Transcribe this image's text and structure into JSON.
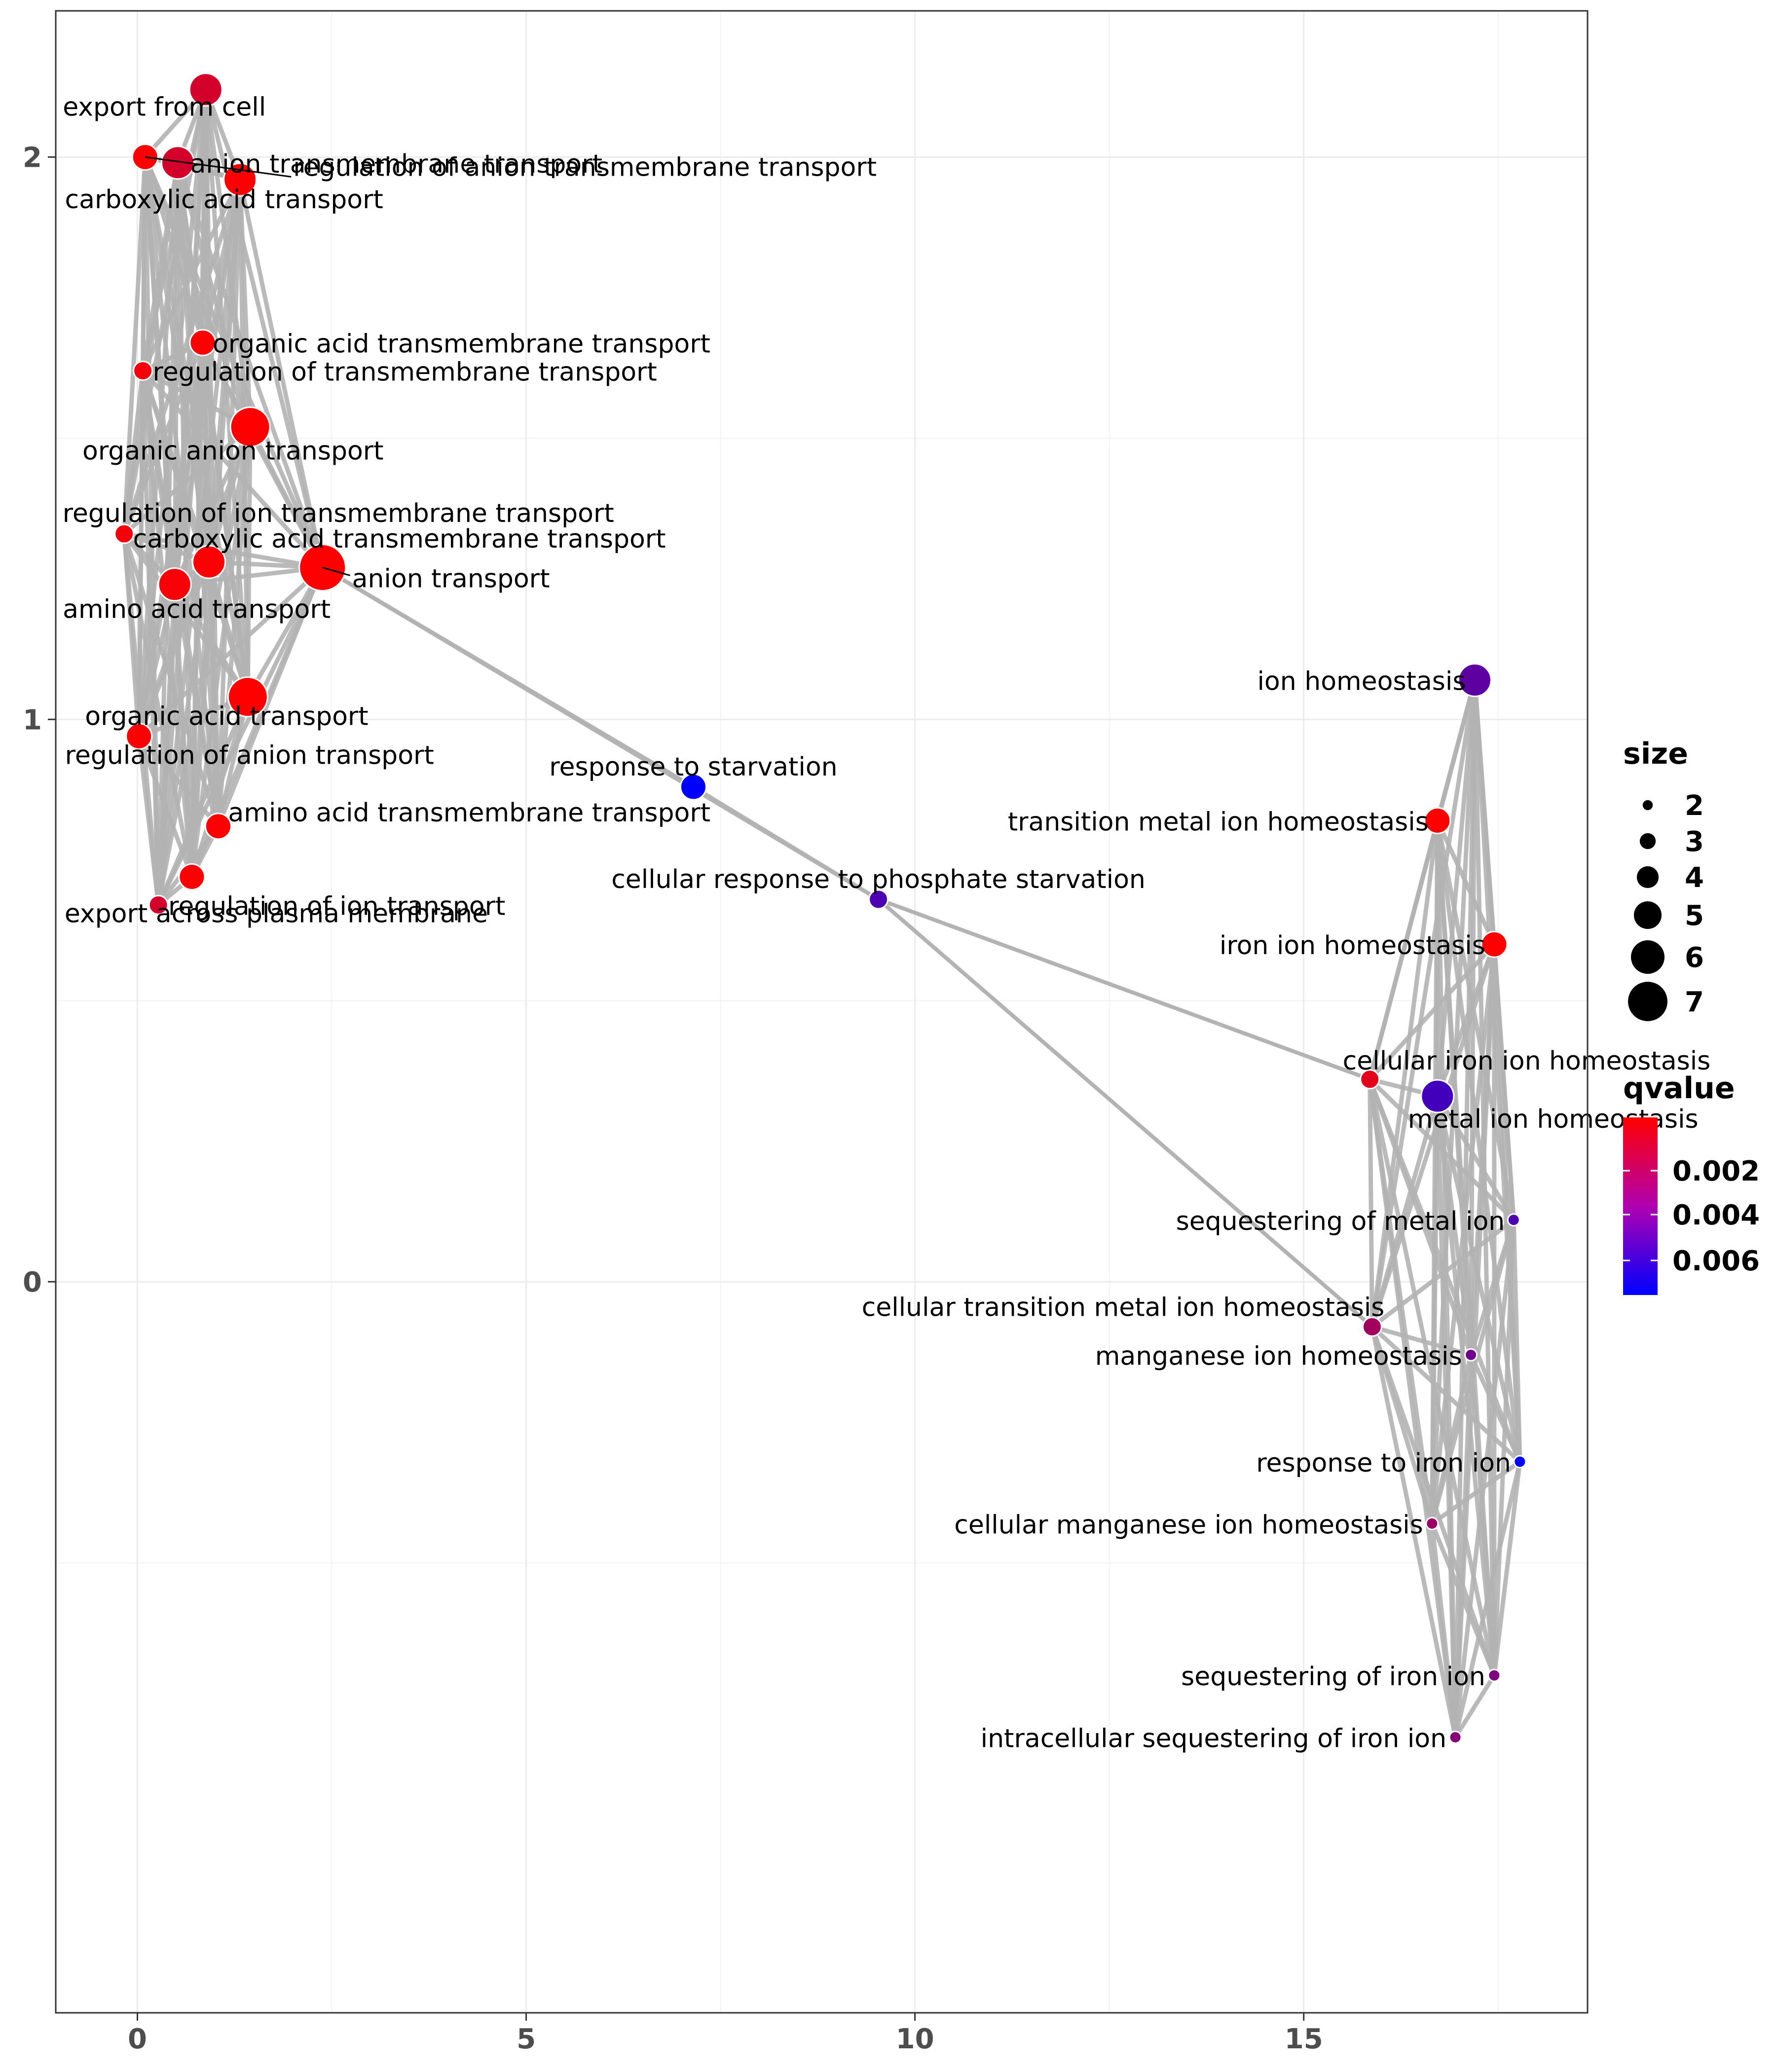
{
  "chart_data": {
    "type": "scatter",
    "title": "",
    "xlabel": "",
    "ylabel": "",
    "xlim": [
      -1.05,
      18.65
    ],
    "ylim": [
      -1.3,
      2.26
    ],
    "x_ticks": [
      0,
      5,
      10,
      15
    ],
    "x_tick_labels": [
      "0",
      "5",
      "10",
      "15"
    ],
    "y_ticks": [
      0,
      1,
      2
    ],
    "y_tick_labels": [
      "0",
      "1",
      "2"
    ],
    "grid": true,
    "edge_color": "#b3b3b3",
    "nodes": [
      {
        "id": 0,
        "label": "export from cell",
        "x": 0.88,
        "y": 2.12,
        "size": 5,
        "qvalue": 0.0015
      },
      {
        "id": 1,
        "label": "regulation of anion transmembrane transport",
        "x": 0.1,
        "y": 2.0,
        "size": 4,
        "qvalue": 0.0003
      },
      {
        "id": 2,
        "label": "anion transmembrane transport",
        "x": 0.52,
        "y": 1.99,
        "size": 5,
        "qvalue": 0.0015
      },
      {
        "id": 3,
        "label": "carboxylic acid transport",
        "x": 1.32,
        "y": 1.96,
        "size": 5,
        "qvalue": 0.0003
      },
      {
        "id": 4,
        "label": "organic acid transmembrane transport",
        "x": 0.84,
        "y": 1.67,
        "size": 4,
        "qvalue": 0.0003
      },
      {
        "id": 5,
        "label": "regulation of transmembrane transport",
        "x": 0.07,
        "y": 1.62,
        "size": 3,
        "qvalue": 0.0005
      },
      {
        "id": 6,
        "label": "organic anion transport",
        "x": 1.45,
        "y": 1.52,
        "size": 6,
        "qvalue": 0.0002
      },
      {
        "id": 7,
        "label": "regulation of ion transmembrane transport",
        "x": -0.17,
        "y": 1.33,
        "size": 3,
        "qvalue": 0.0005
      },
      {
        "id": 8,
        "label": "carboxylic acid transmembrane transport",
        "x": 0.92,
        "y": 1.28,
        "size": 5,
        "qvalue": 0.0003
      },
      {
        "id": 9,
        "label": "anion transport",
        "x": 2.38,
        "y": 1.27,
        "size": 7,
        "qvalue": 0.0002
      },
      {
        "id": 10,
        "label": "amino acid transport",
        "x": 0.48,
        "y": 1.24,
        "size": 5,
        "qvalue": 0.0004
      },
      {
        "id": 11,
        "label": "organic acid transport",
        "x": 1.42,
        "y": 1.04,
        "size": 6,
        "qvalue": 0.0002
      },
      {
        "id": 12,
        "label": "regulation of anion transport",
        "x": 0.02,
        "y": 0.97,
        "size": 4,
        "qvalue": 0.0003
      },
      {
        "id": 13,
        "label": "amino acid transmembrane transport",
        "x": 1.04,
        "y": 0.81,
        "size": 4,
        "qvalue": 0.0003
      },
      {
        "id": 14,
        "label": "export across plasma membrane",
        "x": 0.7,
        "y": 0.72,
        "size": 4,
        "qvalue": 0.0003
      },
      {
        "id": 15,
        "label": "regulation of ion transport",
        "x": 0.27,
        "y": 0.67,
        "size": 3,
        "qvalue": 0.0015
      },
      {
        "id": 16,
        "label": "response to starvation",
        "x": 7.15,
        "y": 0.88,
        "size": 4,
        "qvalue": 0.0078
      },
      {
        "id": 17,
        "label": "cellular response to phosphate starvation",
        "x": 9.53,
        "y": 0.68,
        "size": 3,
        "qvalue": 0.0055
      },
      {
        "id": 18,
        "label": "ion homeostasis",
        "x": 17.2,
        "y": 1.07,
        "size": 5,
        "qvalue": 0.005
      },
      {
        "id": 19,
        "label": "transition metal ion homeostasis",
        "x": 16.72,
        "y": 0.82,
        "size": 4,
        "qvalue": 0.0002
      },
      {
        "id": 20,
        "label": "iron ion homeostasis",
        "x": 17.45,
        "y": 0.6,
        "size": 4,
        "qvalue": 0.0002
      },
      {
        "id": 21,
        "label": "cellular iron ion homeostasis",
        "x": 15.85,
        "y": 0.36,
        "size": 3,
        "qvalue": 0.001
      },
      {
        "id": 22,
        "label": "metal ion homeostasis",
        "x": 16.72,
        "y": 0.33,
        "size": 5,
        "qvalue": 0.0058
      },
      {
        "id": 23,
        "label": "sequestering of metal ion",
        "x": 17.7,
        "y": 0.11,
        "size": 2,
        "qvalue": 0.0055
      },
      {
        "id": 24,
        "label": "cellular transition metal ion homeostasis",
        "x": 15.88,
        "y": -0.08,
        "size": 3,
        "qvalue": 0.003
      },
      {
        "id": 25,
        "label": "manganese ion homeostasis",
        "x": 17.15,
        "y": -0.13,
        "size": 2,
        "qvalue": 0.0045
      },
      {
        "id": 26,
        "label": "response to iron ion",
        "x": 17.78,
        "y": -0.32,
        "size": 2,
        "qvalue": 0.0078
      },
      {
        "id": 27,
        "label": "cellular manganese ion homeostasis",
        "x": 16.65,
        "y": -0.43,
        "size": 2,
        "qvalue": 0.0032
      },
      {
        "id": 28,
        "label": "sequestering of iron ion",
        "x": 17.45,
        "y": -0.7,
        "size": 2,
        "qvalue": 0.004
      },
      {
        "id": 29,
        "label": "intracellular sequestering of iron ion",
        "x": 16.95,
        "y": -0.81,
        "size": 2,
        "qvalue": 0.0038
      }
    ],
    "bridge_edges": [
      [
        9,
        16
      ],
      [
        9,
        17
      ],
      [
        16,
        17
      ],
      [
        17,
        21
      ],
      [
        17,
        24
      ]
    ],
    "legend": {
      "position": "right",
      "size_title": "size",
      "size_values": [
        2,
        3,
        4,
        5,
        6,
        7
      ],
      "color_title": "qvalue",
      "color_values": [
        "0.002",
        "0.004",
        "0.006"
      ],
      "color_low": "#ff0000",
      "color_high": "#0000ff"
    }
  }
}
